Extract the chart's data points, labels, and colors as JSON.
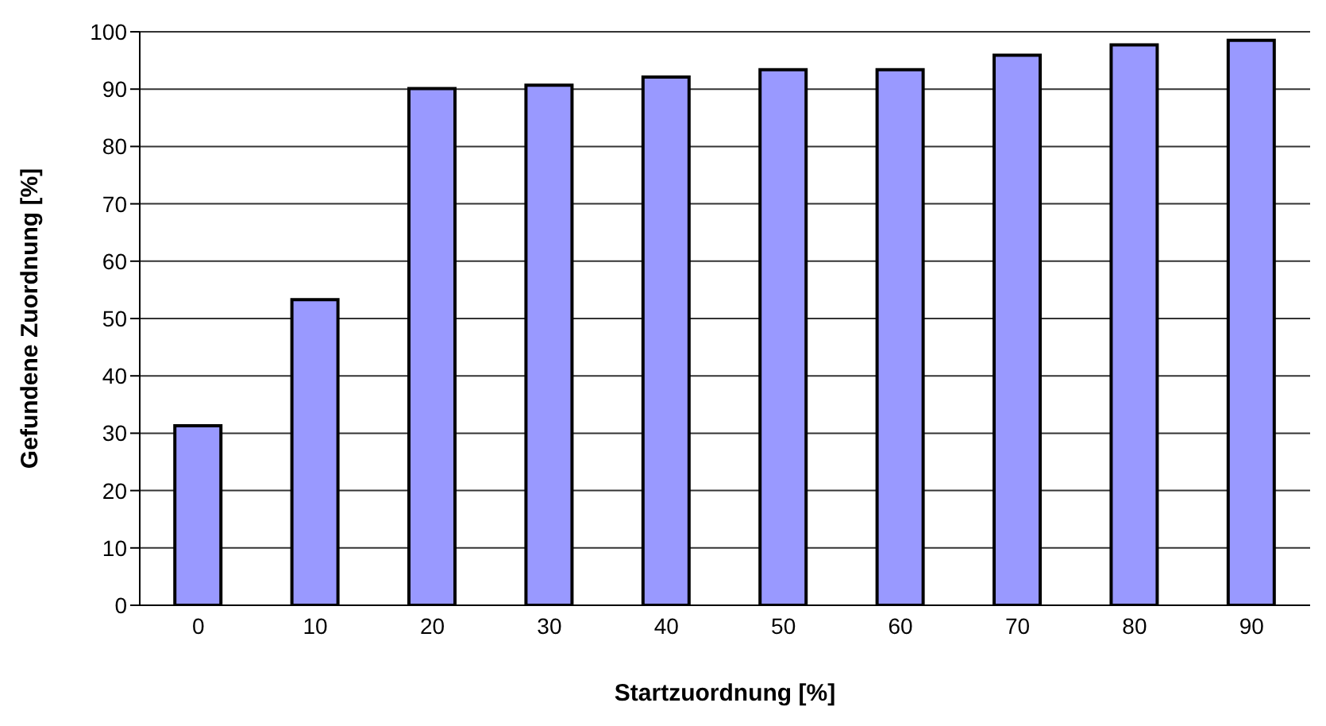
{
  "chart_data": {
    "type": "bar",
    "xlabel": "Startzuordnung [%]",
    "ylabel": "Gefundene Zuordnung [%]",
    "categories": [
      "0",
      "10",
      "20",
      "30",
      "40",
      "50",
      "60",
      "70",
      "80",
      "90"
    ],
    "values": [
      31.3,
      53.3,
      90.1,
      90.7,
      92.1,
      93.4,
      93.4,
      95.9,
      97.7,
      98.5
    ],
    "color": "#9999ff",
    "ylim": [
      0,
      100
    ],
    "yticks": [
      0,
      10,
      20,
      30,
      40,
      50,
      60,
      70,
      80,
      90,
      100
    ],
    "grid": "y"
  }
}
